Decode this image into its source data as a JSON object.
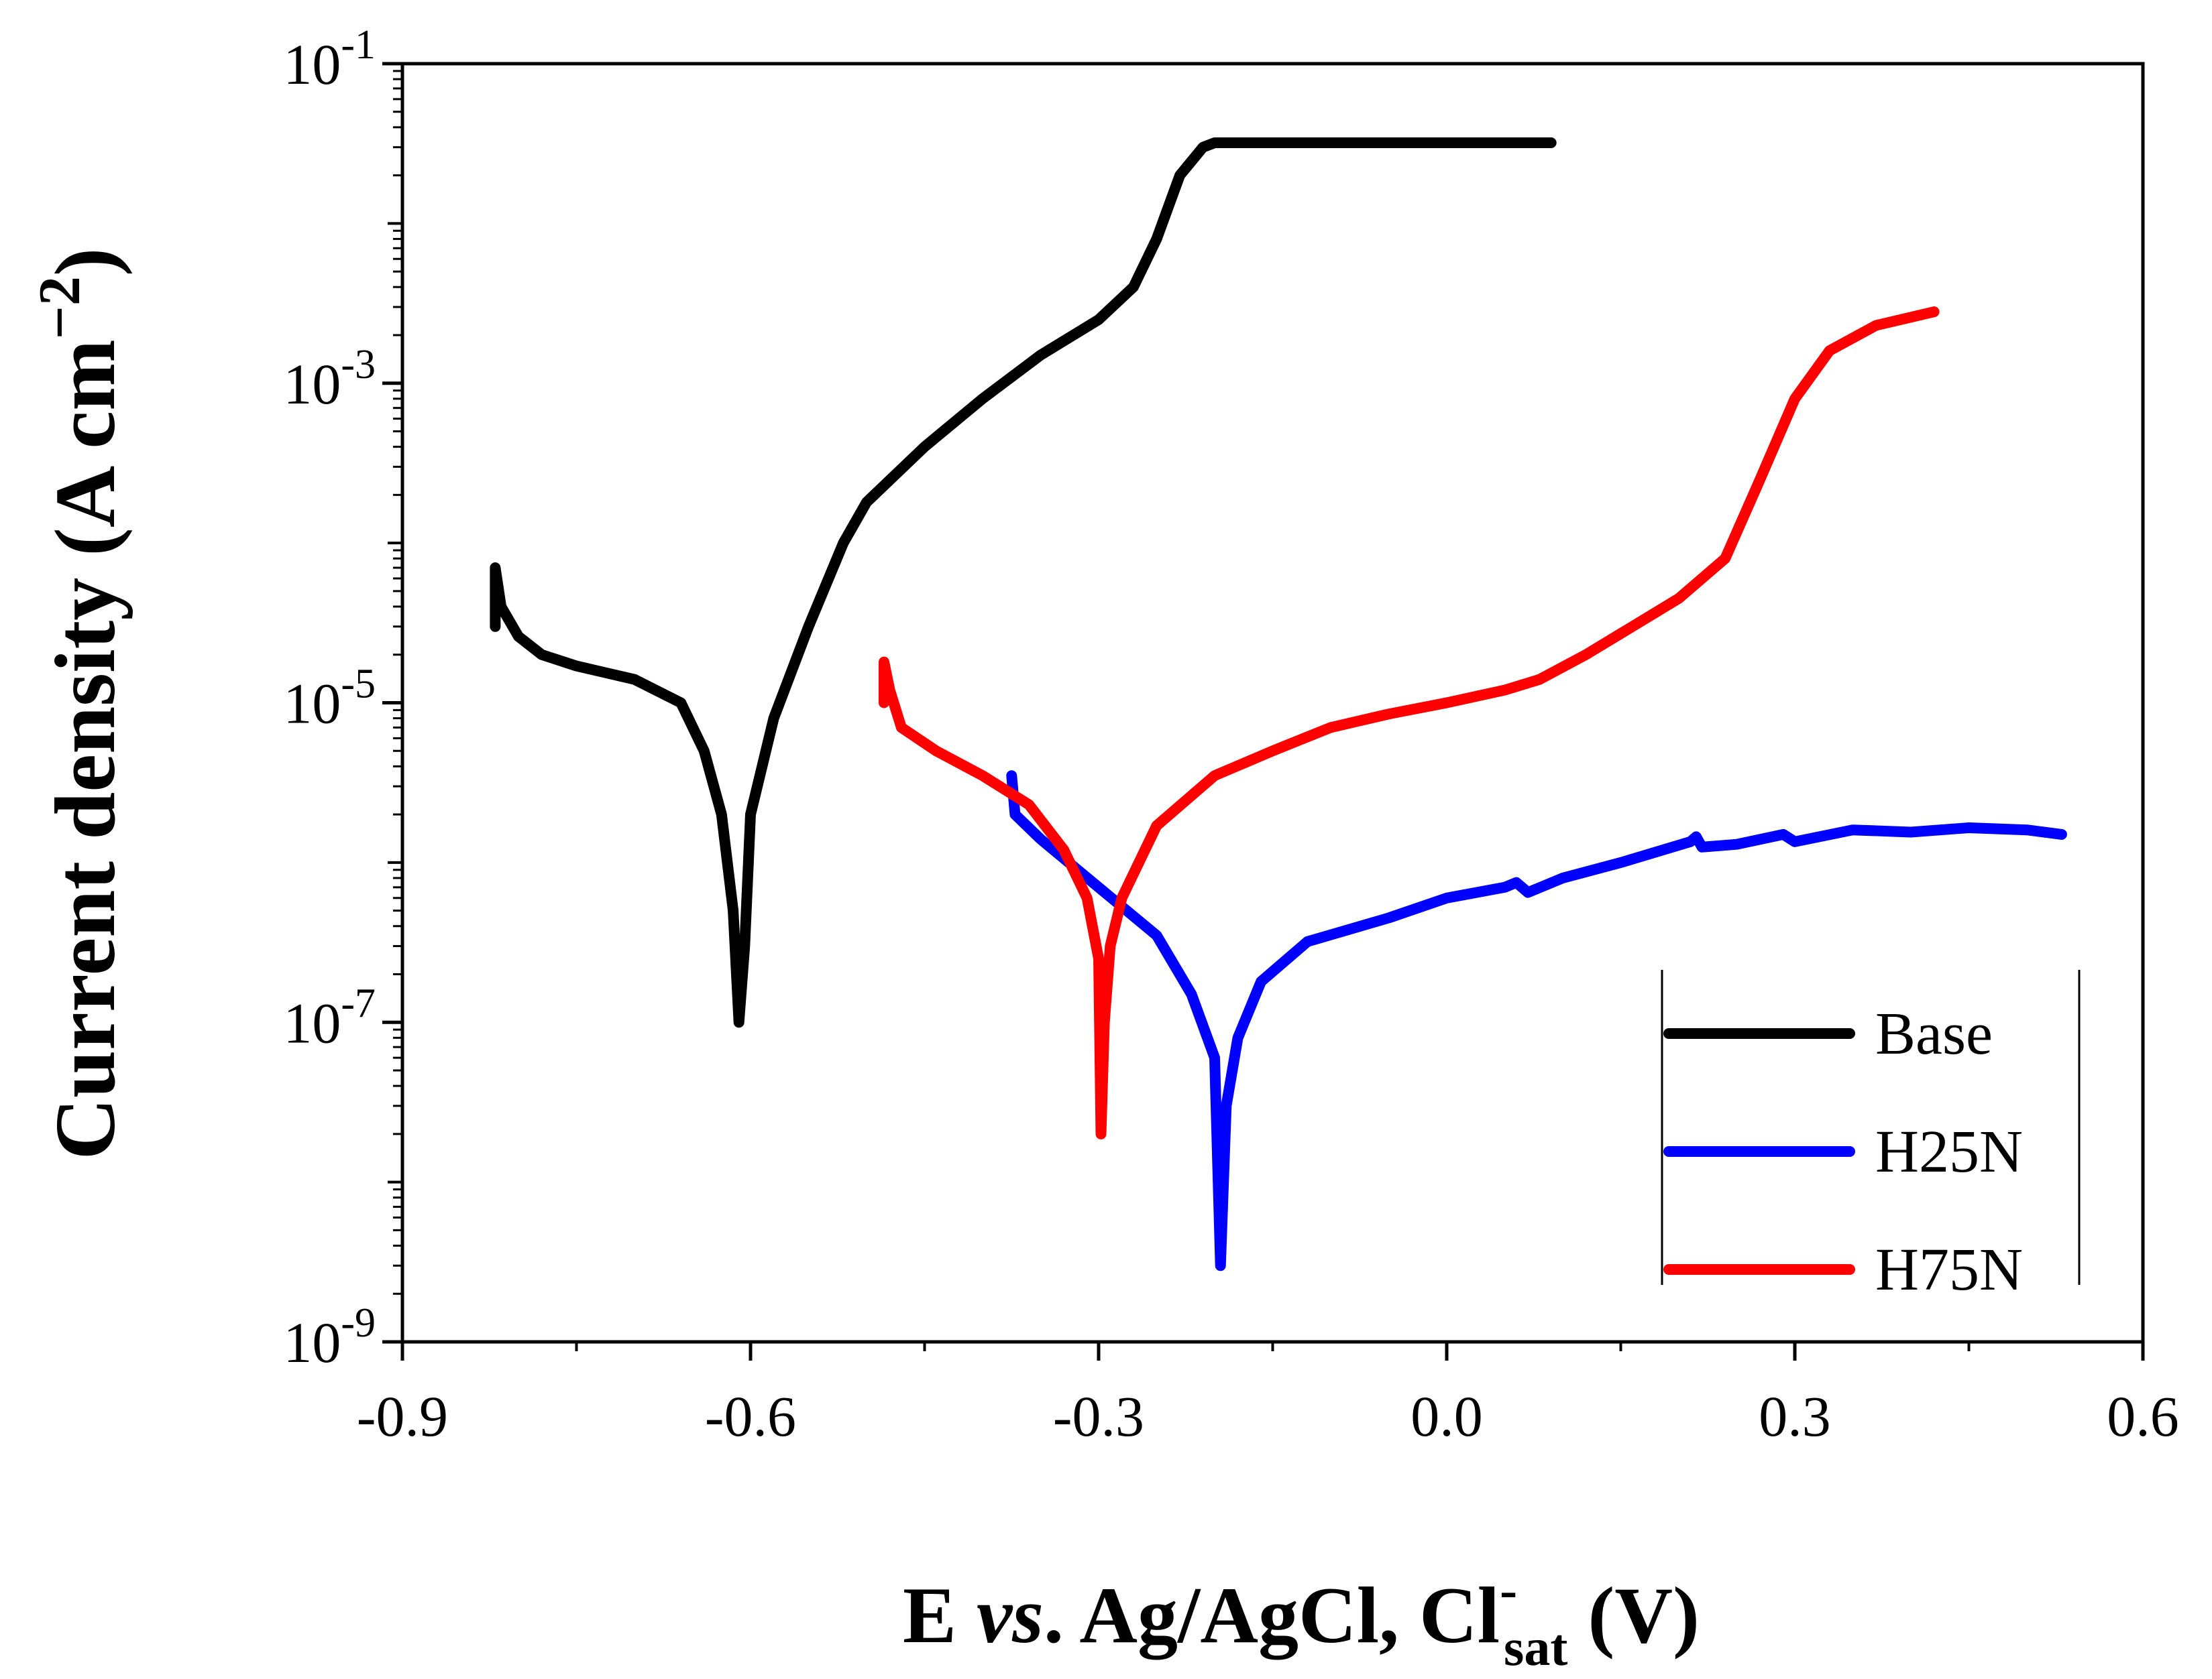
{
  "chart_data": {
    "type": "line",
    "title": "",
    "xlabel": {
      "prefix": "E ",
      "italic": "vs",
      "middle": ". Ag/AgCl, Cl",
      "superscript": "-",
      "subscript": "sat",
      "suffix": " (V)"
    },
    "ylabel": {
      "text": "Current density  (A cm",
      "superscript": "−2",
      "suffix": ")"
    },
    "x_scale": "linear",
    "y_scale": "log",
    "xlim": [
      -0.9,
      0.6
    ],
    "ylim": [
      1e-09,
      0.1
    ],
    "x_ticks": [
      {
        "value": -0.9,
        "label": "-0.9"
      },
      {
        "value": -0.6,
        "label": "-0.6"
      },
      {
        "value": -0.3,
        "label": "-0.3"
      },
      {
        "value": 0.0,
        "label": "0.0"
      },
      {
        "value": 0.3,
        "label": "0.3"
      },
      {
        "value": 0.6,
        "label": "0.6"
      }
    ],
    "y_ticks": [
      {
        "exp": -9,
        "base": "10",
        "sup": "-9"
      },
      {
        "exp": -7,
        "base": "10",
        "sup": "-7"
      },
      {
        "exp": -5,
        "base": "10",
        "sup": "-5"
      },
      {
        "exp": -3,
        "base": "10",
        "sup": "-3"
      },
      {
        "exp": -1,
        "base": "10",
        "sup": "-1"
      }
    ],
    "legend_position": "bottom-right",
    "series": [
      {
        "name": "Base",
        "color": "#000000",
        "points": [
          [
            -0.82,
            3e-05
          ],
          [
            -0.82,
            7e-05
          ],
          [
            -0.815,
            4e-05
          ],
          [
            -0.8,
            2.6e-05
          ],
          [
            -0.78,
            2e-05
          ],
          [
            -0.75,
            1.7e-05
          ],
          [
            -0.7,
            1.4e-05
          ],
          [
            -0.66,
            1e-05
          ],
          [
            -0.64,
            5e-06
          ],
          [
            -0.625,
            2e-06
          ],
          [
            -0.615,
            5e-07
          ],
          [
            -0.61,
            1e-07
          ],
          [
            -0.605,
            3e-07
          ],
          [
            -0.6,
            2e-06
          ],
          [
            -0.58,
            8e-06
          ],
          [
            -0.55,
            3e-05
          ],
          [
            -0.52,
            0.0001
          ],
          [
            -0.5,
            0.00018
          ],
          [
            -0.45,
            0.0004
          ],
          [
            -0.4,
            0.0008
          ],
          [
            -0.35,
            0.0015
          ],
          [
            -0.3,
            0.0025
          ],
          [
            -0.27,
            0.004
          ],
          [
            -0.25,
            0.008
          ],
          [
            -0.23,
            0.02
          ],
          [
            -0.21,
            0.03
          ],
          [
            -0.2,
            0.032
          ],
          [
            0.09,
            0.032
          ]
        ]
      },
      {
        "name": "H25N",
        "color": "#0000ff",
        "points": [
          [
            -0.375,
            3.5e-06
          ],
          [
            -0.372,
            2e-06
          ],
          [
            -0.35,
            1.4e-06
          ],
          [
            -0.3,
            7e-07
          ],
          [
            -0.25,
            3.5e-07
          ],
          [
            -0.22,
            1.5e-07
          ],
          [
            -0.2,
            6e-08
          ],
          [
            -0.195,
            3e-09
          ],
          [
            -0.19,
            3e-08
          ],
          [
            -0.18,
            8e-08
          ],
          [
            -0.16,
            1.8e-07
          ],
          [
            -0.12,
            3.2e-07
          ],
          [
            -0.05,
            4.5e-07
          ],
          [
            0.0,
            6e-07
          ],
          [
            0.05,
            7e-07
          ],
          [
            0.06,
            7.5e-07
          ],
          [
            0.07,
            6.5e-07
          ],
          [
            0.1,
            8e-07
          ],
          [
            0.15,
            1e-06
          ],
          [
            0.21,
            1.35e-06
          ],
          [
            0.215,
            1.45e-06
          ],
          [
            0.22,
            1.25e-06
          ],
          [
            0.25,
            1.3e-06
          ],
          [
            0.29,
            1.5e-06
          ],
          [
            0.3,
            1.35e-06
          ],
          [
            0.35,
            1.6e-06
          ],
          [
            0.4,
            1.55e-06
          ],
          [
            0.45,
            1.65e-06
          ],
          [
            0.5,
            1.6e-06
          ],
          [
            0.53,
            1.5e-06
          ]
        ]
      },
      {
        "name": "H75N",
        "color": "#ff0000",
        "points": [
          [
            -0.485,
            1e-05
          ],
          [
            -0.485,
            1.8e-05
          ],
          [
            -0.48,
            1.2e-05
          ],
          [
            -0.47,
            7e-06
          ],
          [
            -0.44,
            5e-06
          ],
          [
            -0.4,
            3.5e-06
          ],
          [
            -0.36,
            2.3e-06
          ],
          [
            -0.33,
            1.2e-06
          ],
          [
            -0.31,
            6e-07
          ],
          [
            -0.3,
            2.5e-07
          ],
          [
            -0.298,
            2e-08
          ],
          [
            -0.295,
            1e-07
          ],
          [
            -0.29,
            3e-07
          ],
          [
            -0.28,
            6e-07
          ],
          [
            -0.25,
            1.7e-06
          ],
          [
            -0.2,
            3.5e-06
          ],
          [
            -0.15,
            5e-06
          ],
          [
            -0.1,
            7e-06
          ],
          [
            -0.05,
            8.5e-06
          ],
          [
            0.0,
            1e-05
          ],
          [
            0.05,
            1.2e-05
          ],
          [
            0.08,
            1.4e-05
          ],
          [
            0.12,
            2e-05
          ],
          [
            0.16,
            3e-05
          ],
          [
            0.2,
            4.5e-05
          ],
          [
            0.24,
            8e-05
          ],
          [
            0.27,
            0.00025
          ],
          [
            0.3,
            0.0008
          ],
          [
            0.33,
            0.0016
          ],
          [
            0.37,
            0.0023
          ],
          [
            0.42,
            0.0028
          ]
        ]
      }
    ]
  }
}
